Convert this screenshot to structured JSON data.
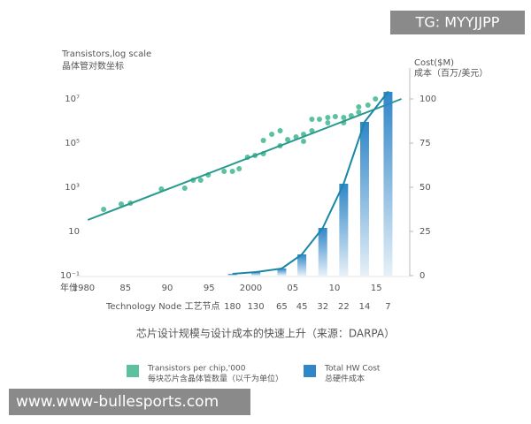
{
  "watermark_top": "TG: MYYJJPP",
  "watermark_bottom": "www.www-bullesports.com",
  "chart_data": {
    "type": "combo",
    "title": "芯片设计规模与设计成本的快速上升（来源：DARPA）",
    "y_label": [
      "Transistors,log scale",
      "晶体管对数坐标"
    ],
    "y2_label": [
      "Cost($M)",
      "成本（百万/美元）"
    ],
    "x_label": "年份",
    "node_title": "Technology Node 工艺节点",
    "xlim": [
      1979,
      2019
    ],
    "xticks": [
      1980,
      {
        "value": 1985,
        "label": "85"
      },
      {
        "value": 1990,
        "label": "90"
      },
      {
        "value": 1995,
        "label": "95"
      },
      2000,
      {
        "value": 2005,
        "label": "05"
      },
      {
        "value": 2010,
        "label": "10"
      },
      {
        "value": 2015,
        "label": "15"
      }
    ],
    "yscale": "log",
    "ylim": [
      0.1,
      100000000
    ],
    "yticks": [
      {
        "value": 0.1,
        "label": "10⁻¹"
      },
      10,
      {
        "value": 1000,
        "label": "10³"
      },
      {
        "value": 100000,
        "label": "10⁵"
      },
      {
        "value": 10000000,
        "label": "10⁷"
      }
    ],
    "y2lim": [
      0,
      112.5
    ],
    "y2ticks": [
      0,
      25,
      50,
      75,
      100
    ],
    "series": [
      {
        "name": "Transistors per chip,'000",
        "name_zh": "每块芯片含晶体管数量（以千为单位）",
        "type": "scatter",
        "color": "#5cc19e",
        "x": [
          1982.4,
          1984.5,
          1985.6,
          1989.3,
          1992.1,
          1993.1,
          1994.0,
          1994.9,
          1996.8,
          1997.8,
          1998.6,
          1999.6,
          2000.5,
          2001.5,
          2001.5,
          2002.5,
          2003.5,
          2003.5,
          2004.4,
          2005.4,
          2006.3,
          2006.3,
          2007.3,
          2007.3,
          2008.2,
          2009.2,
          2009.2,
          2010.1,
          2011.1,
          2011.1,
          2012.0,
          2012.9,
          2012.9,
          2014.0,
          2014.9,
          2016.4
        ],
        "values": [
          100,
          174,
          190,
          830,
          910,
          2090,
          2090,
          3630,
          5250,
          5250,
          6920,
          22900,
          27500,
          33100,
          132000,
          251000,
          363000,
          75900,
          145000,
          191000,
          120000,
          251000,
          363000,
          1200000,
          1200000,
          1450000,
          832000,
          1580000,
          1450000,
          832000,
          1740000,
          4370000,
          2510000,
          5250000,
          10000000,
          17400000
        ]
      },
      {
        "type": "line",
        "color": "#2a9a8e",
        "x": [
          1980.5,
          2018
        ],
        "values": [
          33,
          10000000
        ]
      },
      {
        "name": "Total HW Cost",
        "name_zh": "总硬件成本",
        "type": "bar+line",
        "axis": "y2",
        "color": "#2f86c8",
        "line_color": "#1b86a6",
        "x": [
          1997.8,
          2000.6,
          2003.7,
          2006.1,
          2008.6,
          2011.1,
          2013.6,
          2016.4
        ],
        "categories": [
          "180",
          "130",
          "65",
          "45",
          "32",
          "22",
          "14",
          "7"
        ],
        "values": [
          1,
          2,
          4,
          12,
          27,
          52,
          87,
          104
        ]
      }
    ]
  }
}
